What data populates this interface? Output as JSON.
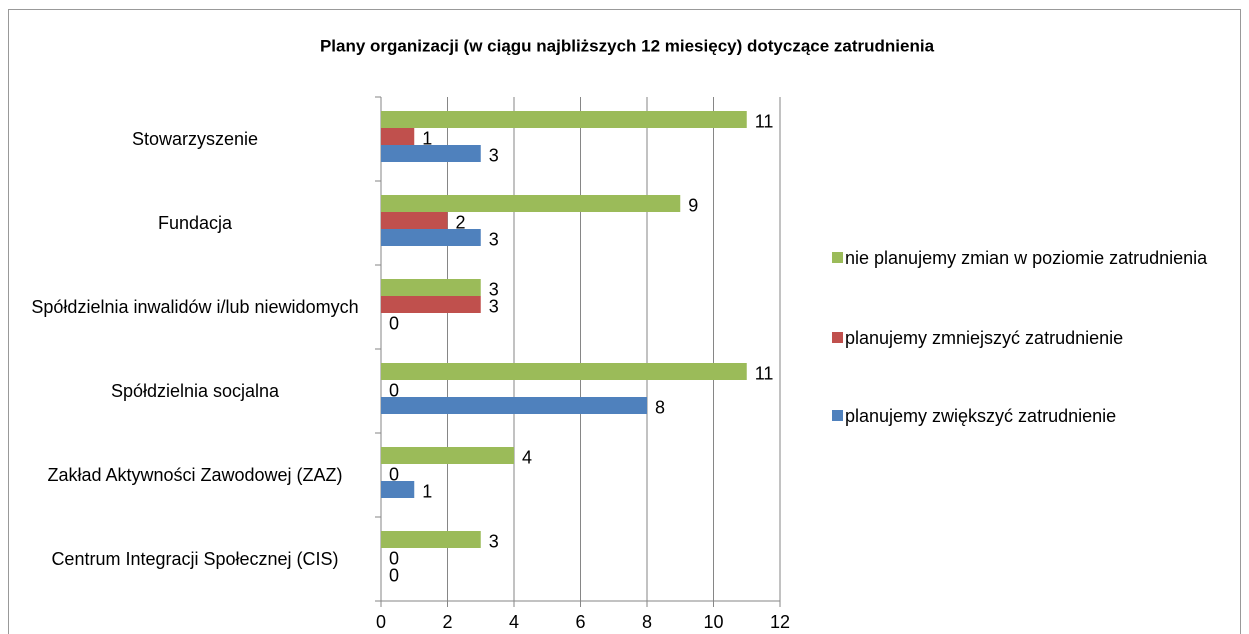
{
  "chart_data": {
    "type": "hbar",
    "title": "Plany organizacji (w ciągu najbliższych 12 miesięcy) dotyczące zatrudnienia",
    "categories": [
      "Stowarzyszenie",
      "Fundacja",
      "Spółdzielnia inwalidów i/lub niewidomych",
      "Spółdzielnia socjalna",
      "Zakład Aktywności Zawodowej (ZAZ)",
      "Centrum Integracji Społecznej (CIS)"
    ],
    "series": [
      {
        "name": "nie planujemy zmian w poziomie zatrudnienia",
        "color": "#9bbb59",
        "values": [
          11,
          9,
          3,
          11,
          4,
          3
        ]
      },
      {
        "name": "planujemy zmniejszyć zatrudnienie",
        "color": "#c0504d",
        "values": [
          1,
          2,
          3,
          0,
          0,
          0
        ]
      },
      {
        "name": "planujemy zwiększyć zatrudnienie",
        "color": "#4f81bd",
        "values": [
          3,
          3,
          0,
          8,
          1,
          0
        ]
      }
    ],
    "xlim": [
      0,
      12
    ],
    "xticks": [
      0,
      2,
      4,
      6,
      8,
      10,
      12
    ],
    "grid": true,
    "legend": "right"
  }
}
